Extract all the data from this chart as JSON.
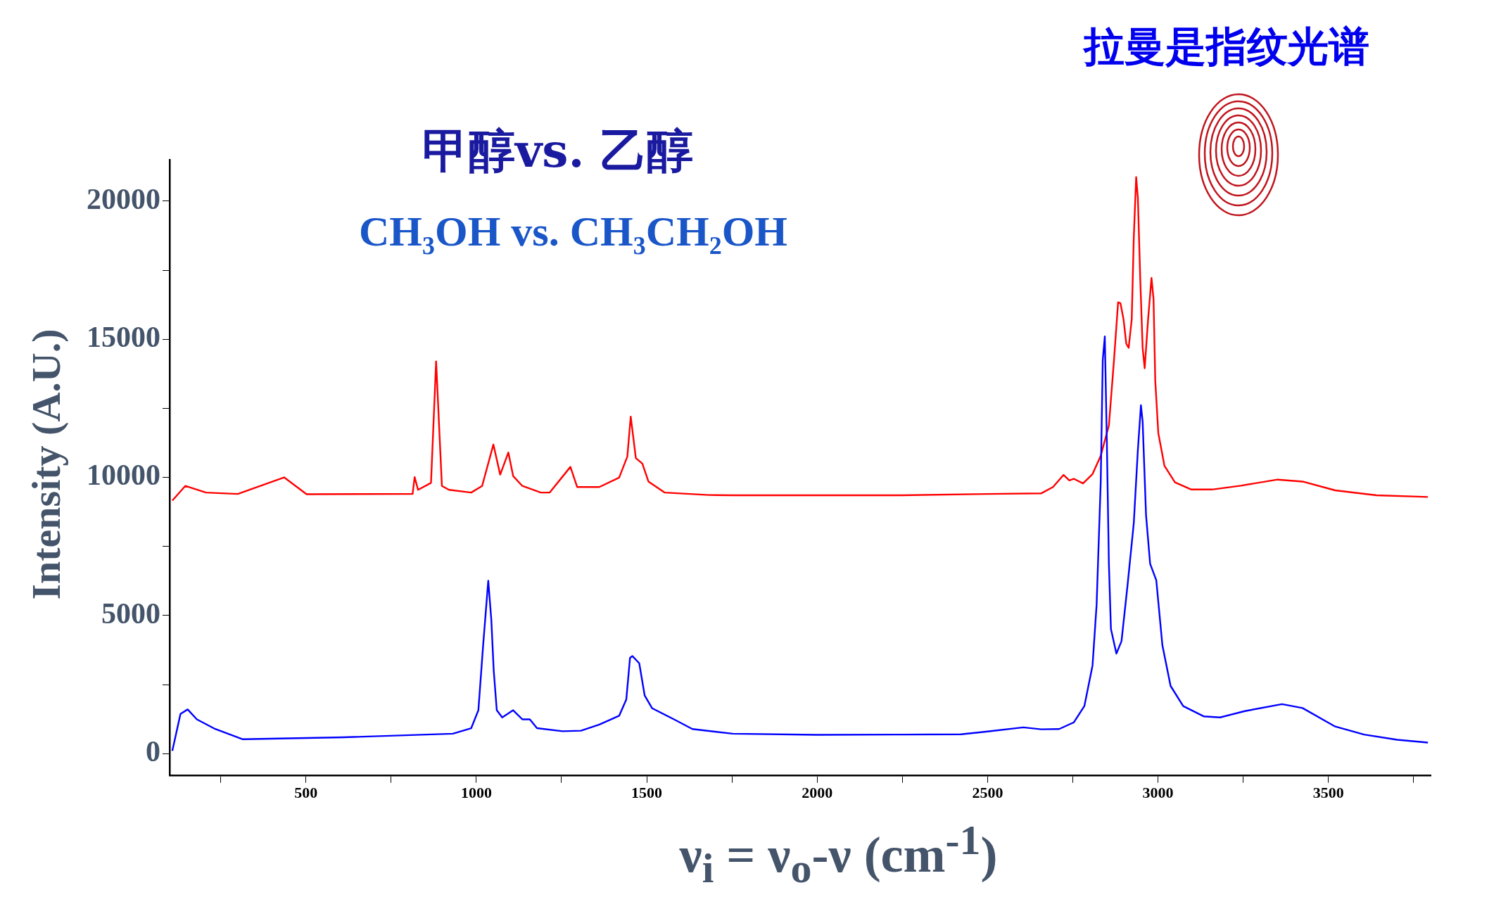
{
  "chart_data": {
    "type": "line",
    "title": "甲醇vs. 乙醇",
    "subtitle": "CH₃OH vs. CH₃CH₂OH",
    "xlabel": "ν$_{i}$ = ν$_{o}$-ν (cm$^{-1}$)",
    "ylabel": "Intensity (A.U.)",
    "annotations": [
      "拉曼是指纹光谱"
    ],
    "xlim": [
      100,
      3800
    ],
    "xticks": [
      {
        "value": 250,
        "label": null
      },
      500,
      {
        "value": 750,
        "label": null
      },
      1000,
      {
        "value": 1250,
        "label": null
      },
      1500,
      {
        "value": 1750,
        "label": null
      },
      2000,
      {
        "value": 2250,
        "label": null
      },
      2500,
      {
        "value": 2750,
        "label": null
      },
      3000,
      {
        "value": 3250,
        "label": null
      },
      3500,
      {
        "value": 3750,
        "label": null
      }
    ],
    "ylim": [
      -800,
      21500
    ],
    "yticks": [
      0,
      {
        "value": 2500,
        "label": null
      },
      5000,
      {
        "value": 7500,
        "label": null
      },
      10000,
      {
        "value": 12500,
        "label": null
      },
      15000,
      {
        "value": 17500,
        "label": null
      },
      20000
    ],
    "grid": false,
    "legend": false,
    "marker": "none",
    "line_style": "solid",
    "series": [
      {
        "color": "#0000ff",
        "x": [
          108,
          132,
          153,
          180,
          234,
          315,
          609,
          931,
          985,
          1006,
          1020,
          1035,
          1044,
          1051,
          1060,
          1076,
          1108,
          1135,
          1157,
          1178,
          1253,
          1307,
          1361,
          1419,
          1440,
          1451,
          1458,
          1478,
          1494,
          1516,
          1580,
          1634,
          1752,
          2000,
          2250,
          2422,
          2500,
          2605,
          2657,
          2710,
          2753,
          2784,
          2808,
          2820,
          2832,
          2838,
          2844,
          2850,
          2856,
          2862,
          2878,
          2893,
          2911,
          2929,
          2941,
          2950,
          2955,
          2965,
          2977,
          2995,
          3013,
          3037,
          3074,
          3134,
          3182,
          3255,
          3364,
          3424,
          3520,
          3605,
          3702,
          3792
        ],
        "values": [
          100,
          1440,
          1600,
          1240,
          890,
          520,
          590,
          720,
          920,
          1570,
          3930,
          6260,
          4840,
          3010,
          1570,
          1310,
          1570,
          1240,
          1240,
          920,
          810,
          830,
          1050,
          1370,
          1960,
          3470,
          3530,
          3270,
          2100,
          1640,
          1240,
          890,
          720,
          680,
          690,
          700,
          800,
          950,
          880,
          890,
          1130,
          1720,
          3190,
          5400,
          9820,
          14250,
          15100,
          11300,
          6870,
          4510,
          3620,
          4070,
          6130,
          8340,
          10990,
          12610,
          12020,
          8630,
          6870,
          6280,
          3920,
          2450,
          1720,
          1350,
          1310,
          1540,
          1790,
          1650,
          980,
          690,
          500,
          400
        ]
      },
      {
        "color": "#ff0000",
        "x": [
          108,
          146,
          207,
          300,
          436,
          502,
          813,
          819,
          829,
          867,
          882,
          899,
          920,
          985,
          1017,
          1050,
          1070,
          1094,
          1108,
          1135,
          1189,
          1215,
          1276,
          1296,
          1361,
          1419,
          1443,
          1453,
          1468,
          1487,
          1505,
          1553,
          1682,
          1752,
          2000,
          2247,
          2500,
          2657,
          2692,
          2723,
          2740,
          2753,
          2780,
          2808,
          2832,
          2856,
          2871,
          2883,
          2890,
          2899,
          2907,
          2914,
          2923,
          2929,
          2936,
          2941,
          2948,
          2955,
          2961,
          2971,
          2981,
          2987,
          2992,
          3001,
          3019,
          3050,
          3098,
          3158,
          3243,
          3351,
          3424,
          3520,
          3641,
          3792
        ],
        "values": [
          9160,
          9690,
          9450,
          9400,
          10000,
          9390,
          9400,
          10010,
          9550,
          9800,
          14200,
          9690,
          9550,
          9450,
          9690,
          11190,
          10100,
          10900,
          10050,
          9690,
          9450,
          9450,
          10380,
          9650,
          9650,
          9990,
          10750,
          12200,
          10700,
          10500,
          9850,
          9450,
          9360,
          9350,
          9350,
          9350,
          9400,
          9420,
          9650,
          10090,
          9890,
          9950,
          9780,
          10120,
          10780,
          11880,
          14250,
          16340,
          16300,
          15720,
          14840,
          14690,
          15720,
          18670,
          20870,
          20130,
          17190,
          14690,
          13950,
          15720,
          17220,
          16450,
          13510,
          11600,
          10420,
          9820,
          9560,
          9560,
          9700,
          9920,
          9850,
          9530,
          9350,
          9290
        ]
      }
    ]
  }
}
